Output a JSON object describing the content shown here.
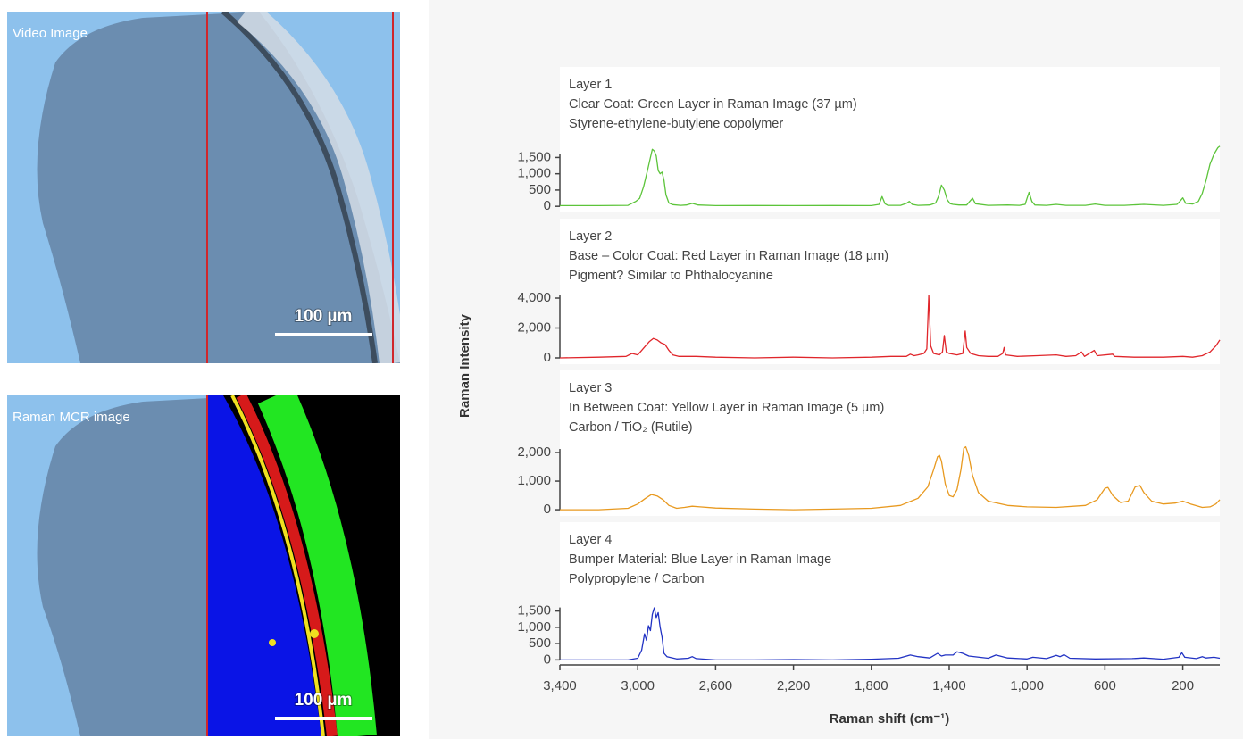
{
  "images": [
    {
      "label": "Video Image",
      "scale_bar": "100 µm"
    },
    {
      "label": "Raman MCR image",
      "scale_bar": "100 µm"
    }
  ],
  "figure": {
    "y_label": "Raman Intensity",
    "x_label": "Raman shift (cm⁻¹)"
  },
  "chart_data": [
    {
      "type": "line",
      "title": "Layer 1",
      "subtitle": "Clear Coat: Green Layer in Raman Image (37 µm)",
      "description": "Styrene-ethylene-butylene copolymer",
      "color": "#5cc43a",
      "xlim": [
        3400,
        10
      ],
      "ylim": [
        -50,
        1950
      ],
      "yticks": [
        0,
        500,
        {
          "value": 1000,
          "label": "1,000"
        },
        {
          "value": 1500,
          "label": "1,500"
        }
      ],
      "x": [
        3400,
        3200,
        3050,
        3010,
        2990,
        2970,
        2950,
        2935,
        2925,
        2915,
        2905,
        2895,
        2885,
        2875,
        2865,
        2855,
        2840,
        2820,
        2780,
        2750,
        2720,
        2690,
        2600,
        2400,
        2200,
        2000,
        1800,
        1760,
        1745,
        1730,
        1715,
        1650,
        1620,
        1605,
        1590,
        1560,
        1500,
        1470,
        1455,
        1440,
        1425,
        1410,
        1395,
        1380,
        1350,
        1310,
        1295,
        1280,
        1265,
        1200,
        1100,
        1040,
        1010,
        1000,
        990,
        975,
        960,
        900,
        850,
        800,
        700,
        650,
        600,
        500,
        400,
        300,
        230,
        215,
        200,
        185,
        150,
        120,
        100,
        80,
        60,
        40,
        20,
        10
      ],
      "values": [
        20,
        20,
        30,
        150,
        250,
        600,
        1100,
        1500,
        1750,
        1700,
        1550,
        1100,
        1000,
        1050,
        800,
        350,
        100,
        50,
        30,
        40,
        90,
        40,
        20,
        25,
        20,
        25,
        20,
        60,
        300,
        80,
        30,
        30,
        90,
        150,
        60,
        30,
        40,
        100,
        300,
        650,
        500,
        200,
        80,
        60,
        40,
        40,
        150,
        250,
        80,
        30,
        40,
        30,
        60,
        250,
        430,
        150,
        40,
        30,
        60,
        30,
        30,
        70,
        30,
        30,
        60,
        30,
        60,
        150,
        260,
        90,
        70,
        150,
        400,
        800,
        1300,
        1600,
        1800,
        1850
      ]
    },
    {
      "type": "line",
      "title": "Layer 2",
      "subtitle": "Base – Color Coat: Red Layer in Raman Image (18 µm)",
      "description": "Pigment? Similar to Phthalocyanine",
      "color": "#e0262b",
      "xlim": [
        3400,
        10
      ],
      "ylim": [
        -120,
        4240
      ],
      "yticks": [
        0,
        {
          "value": 2000,
          "label": "2,000"
        },
        {
          "value": 4000,
          "label": "4,000"
        }
      ],
      "x": [
        3400,
        3200,
        3060,
        3030,
        3000,
        2980,
        2960,
        2940,
        2920,
        2900,
        2880,
        2860,
        2840,
        2820,
        2790,
        2700,
        2600,
        2400,
        2200,
        2000,
        1800,
        1700,
        1620,
        1600,
        1580,
        1560,
        1530,
        1515,
        1505,
        1495,
        1480,
        1450,
        1435,
        1425,
        1415,
        1400,
        1360,
        1330,
        1318,
        1310,
        1290,
        1250,
        1200,
        1150,
        1125,
        1118,
        1110,
        1050,
        950,
        850,
        800,
        750,
        720,
        705,
        655,
        640,
        560,
        550,
        450,
        300,
        200,
        150,
        100,
        60,
        30,
        10
      ],
      "values": [
        0,
        50,
        100,
        300,
        200,
        500,
        800,
        1100,
        1300,
        1200,
        1000,
        900,
        500,
        200,
        100,
        100,
        50,
        0,
        50,
        0,
        50,
        100,
        100,
        250,
        150,
        200,
        300,
        600,
        4180,
        800,
        300,
        200,
        400,
        1500,
        400,
        300,
        200,
        300,
        1800,
        700,
        300,
        150,
        100,
        100,
        300,
        700,
        200,
        100,
        150,
        200,
        100,
        150,
        400,
        100,
        500,
        150,
        250,
        100,
        50,
        50,
        100,
        50,
        150,
        400,
        800,
        1200
      ]
    },
    {
      "type": "line",
      "title": "Layer 3",
      "subtitle": "In Between Coat: Yellow Layer in Raman Image (5 µm)",
      "description": "Carbon / TiO₂ (Rutile)",
      "color": "#e8991f",
      "xlim": [
        3400,
        10
      ],
      "ylim": [
        -60,
        2220
      ],
      "yticks": [
        0,
        {
          "value": 1000,
          "label": "1,000"
        },
        {
          "value": 2000,
          "label": "2,000"
        }
      ],
      "x": [
        3400,
        3200,
        3050,
        3000,
        2960,
        2930,
        2900,
        2870,
        2840,
        2800,
        2760,
        2720,
        2680,
        2600,
        2400,
        2200,
        2000,
        1800,
        1650,
        1560,
        1510,
        1480,
        1460,
        1450,
        1440,
        1420,
        1400,
        1380,
        1360,
        1340,
        1325,
        1315,
        1300,
        1280,
        1250,
        1200,
        1100,
        1000,
        850,
        700,
        640,
        600,
        585,
        560,
        520,
        480,
        445,
        420,
        400,
        360,
        300,
        240,
        200,
        160,
        100,
        60,
        30,
        10
      ],
      "values": [
        0,
        0,
        50,
        200,
        400,
        530,
        480,
        350,
        150,
        50,
        80,
        120,
        100,
        60,
        20,
        0,
        20,
        50,
        150,
        400,
        800,
        1400,
        1850,
        1900,
        1700,
        900,
        500,
        450,
        700,
        1400,
        2150,
        2200,
        1900,
        1200,
        600,
        300,
        150,
        100,
        80,
        150,
        350,
        750,
        780,
        500,
        250,
        300,
        800,
        850,
        600,
        300,
        200,
        230,
        300,
        200,
        80,
        100,
        200,
        350
      ]
    },
    {
      "type": "line",
      "title": "Layer 4",
      "subtitle": "Bumper Material: Blue Layer in Raman Image",
      "description": "Polypropylene / Carbon",
      "color": "#2233c4",
      "xlim": [
        3400,
        10
      ],
      "ylim": [
        -100,
        1900
      ],
      "yticks": [
        0,
        500,
        {
          "value": 1000,
          "label": "1,000"
        },
        {
          "value": 1500,
          "label": "1,500"
        }
      ],
      "xticks": [
        {
          "value": 3400,
          "label": "3,400"
        },
        {
          "value": 3000,
          "label": "3,000"
        },
        {
          "value": 2600,
          "label": "2,600"
        },
        {
          "value": 2200,
          "label": "2,200"
        },
        {
          "value": 1800,
          "label": "1,800"
        },
        {
          "value": 1400,
          "label": "1,400"
        },
        {
          "value": 1000,
          "label": "1,000"
        },
        600,
        200
      ],
      "x": [
        3400,
        3200,
        3050,
        3000,
        2980,
        2965,
        2955,
        2945,
        2935,
        2925,
        2915,
        2905,
        2895,
        2885,
        2875,
        2865,
        2850,
        2800,
        2740,
        2720,
        2700,
        2600,
        2400,
        2200,
        2000,
        1800,
        1660,
        1600,
        1560,
        1500,
        1460,
        1440,
        1420,
        1380,
        1360,
        1330,
        1300,
        1200,
        1160,
        1100,
        1000,
        970,
        900,
        850,
        830,
        810,
        780,
        650,
        460,
        400,
        300,
        220,
        205,
        190,
        130,
        100,
        80,
        40,
        10
      ],
      "values": [
        0,
        0,
        0,
        50,
        300,
        800,
        600,
        1050,
        900,
        1400,
        1600,
        1300,
        1450,
        1000,
        700,
        200,
        100,
        30,
        50,
        100,
        40,
        0,
        0,
        10,
        0,
        20,
        50,
        150,
        100,
        60,
        200,
        120,
        150,
        150,
        250,
        200,
        120,
        50,
        150,
        60,
        30,
        80,
        40,
        140,
        100,
        160,
        50,
        30,
        40,
        60,
        20,
        80,
        220,
        80,
        40,
        100,
        60,
        80,
        50
      ]
    }
  ]
}
